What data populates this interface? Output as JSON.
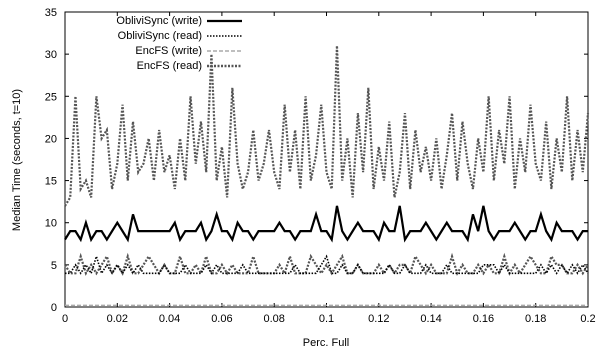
{
  "chart_data": {
    "type": "line",
    "title": "",
    "xlabel": "Perc. Full",
    "ylabel": "Median Time (seconds, t=10)",
    "xlim": [
      0,
      0.2
    ],
    "ylim": [
      0,
      35
    ],
    "x_ticks": [
      0,
      0.02,
      0.04,
      0.06,
      0.08,
      0.1,
      0.12,
      0.14,
      0.16,
      0.18,
      0.2
    ],
    "x_tick_labels": [
      "0",
      "0.02",
      "0.04",
      "0.06",
      "0.08",
      "0.1",
      "0.12",
      "0.14",
      "0.16",
      "0.18",
      "0.2"
    ],
    "y_ticks": [
      0,
      5,
      10,
      15,
      20,
      25,
      30,
      35
    ],
    "y_tick_labels": [
      "0",
      "5",
      "10",
      "15",
      "20",
      "25",
      "30",
      "35"
    ],
    "grid": false,
    "legend_position": "top-left",
    "x": [
      0.0,
      0.002,
      0.004,
      0.006,
      0.008,
      0.01,
      0.012,
      0.014,
      0.016,
      0.018,
      0.02,
      0.022,
      0.024,
      0.026,
      0.028,
      0.03,
      0.032,
      0.034,
      0.036,
      0.038,
      0.04,
      0.042,
      0.044,
      0.046,
      0.048,
      0.05,
      0.052,
      0.054,
      0.056,
      0.058,
      0.06,
      0.062,
      0.064,
      0.066,
      0.068,
      0.07,
      0.072,
      0.074,
      0.076,
      0.078,
      0.08,
      0.082,
      0.084,
      0.086,
      0.088,
      0.09,
      0.092,
      0.094,
      0.096,
      0.098,
      0.1,
      0.102,
      0.104,
      0.106,
      0.108,
      0.11,
      0.112,
      0.114,
      0.116,
      0.118,
      0.12,
      0.122,
      0.124,
      0.126,
      0.128,
      0.13,
      0.132,
      0.134,
      0.136,
      0.138,
      0.14,
      0.142,
      0.144,
      0.146,
      0.148,
      0.15,
      0.152,
      0.154,
      0.156,
      0.158,
      0.16,
      0.162,
      0.164,
      0.166,
      0.168,
      0.17,
      0.172,
      0.174,
      0.176,
      0.178,
      0.18,
      0.182,
      0.184,
      0.186,
      0.188,
      0.19,
      0.192,
      0.194,
      0.196,
      0.198,
      0.2
    ],
    "series": [
      {
        "name": "ObliviSync (write)",
        "style": "solid-thick",
        "color": "#000000",
        "values": [
          8,
          9,
          9,
          8,
          10,
          8,
          9,
          9,
          8,
          9,
          10,
          9,
          8,
          11,
          9,
          9,
          9,
          9,
          9,
          9,
          9,
          10,
          8,
          9,
          9,
          9,
          10,
          8,
          9,
          11,
          9,
          9,
          8,
          10,
          9,
          9,
          8,
          9,
          9,
          9,
          9,
          10,
          9,
          9,
          8,
          9,
          9,
          9,
          11,
          9,
          9,
          8,
          12,
          9,
          8,
          9,
          10,
          9,
          9,
          9,
          8,
          10,
          9,
          9,
          12,
          8,
          9,
          9,
          9,
          10,
          9,
          8,
          9,
          10,
          9,
          9,
          9,
          8,
          11,
          9,
          12,
          9,
          8,
          9,
          9,
          9,
          10,
          9,
          8,
          9,
          9,
          11,
          9,
          8,
          10,
          9,
          9,
          9,
          8,
          9,
          9
        ]
      },
      {
        "name": "ObliviSync (read)",
        "style": "dotted",
        "color": "#000000",
        "values": [
          4,
          4,
          5,
          4,
          5,
          4,
          6,
          4,
          5,
          4,
          5,
          4,
          5,
          4,
          5,
          4,
          4,
          4,
          4,
          5,
          4,
          4,
          4,
          5,
          4,
          4,
          4,
          5,
          4,
          5,
          4,
          4,
          4,
          4,
          5,
          4,
          4,
          4,
          4,
          4,
          4,
          4,
          4,
          4,
          5,
          4,
          4,
          4,
          4,
          5,
          6,
          4,
          4,
          5,
          4,
          4,
          5,
          4,
          4,
          4,
          4,
          4,
          5,
          4,
          4,
          5,
          4,
          4,
          4,
          5,
          4,
          4,
          4,
          5,
          4,
          4,
          4,
          4,
          4,
          4,
          5,
          5,
          5,
          4,
          5,
          4,
          4,
          4,
          4,
          4,
          4,
          5,
          4,
          5,
          4,
          5,
          4,
          5,
          4,
          5,
          4
        ]
      },
      {
        "name": "EncFS (write)",
        "style": "dashed-gray",
        "color": "#aaaaaa",
        "values": [
          0.2,
          0.2,
          0.2,
          0.2,
          0.2,
          0.2,
          0.2,
          0.2,
          0.2,
          0.2,
          0.2,
          0.2,
          0.2,
          0.2,
          0.2,
          0.2,
          0.2,
          0.2,
          0.2,
          0.2,
          0.2,
          0.2,
          0.2,
          0.2,
          0.2,
          0.2,
          0.2,
          0.2,
          0.2,
          0.2,
          0.2,
          0.2,
          0.2,
          0.2,
          0.2,
          0.2,
          0.2,
          0.2,
          0.2,
          0.2,
          0.2,
          0.2,
          0.2,
          0.2,
          0.2,
          0.2,
          0.2,
          0.2,
          0.2,
          0.2,
          0.2,
          0.2,
          0.2,
          0.2,
          0.2,
          0.2,
          0.2,
          0.2,
          0.2,
          0.2,
          0.2,
          0.2,
          0.2,
          0.2,
          0.2,
          0.2,
          0.2,
          0.2,
          0.2,
          0.2,
          0.2,
          0.2,
          0.2,
          0.2,
          0.2,
          0.2,
          0.2,
          0.2,
          0.2,
          0.2,
          0.2,
          0.2,
          0.2,
          0.2,
          0.2,
          0.2,
          0.2,
          0.2,
          0.2,
          0.2,
          0.2,
          0.2,
          0.2,
          0.2,
          0.2,
          0.2,
          0.2,
          0.2,
          0.2,
          0.2,
          0.2
        ]
      },
      {
        "name": "EncFS (read)",
        "style": "dotted-thick",
        "color": "#555555",
        "values": [
          5,
          4,
          4,
          6,
          4,
          5,
          4,
          5,
          6,
          4,
          5,
          4,
          6,
          4,
          4,
          5,
          6,
          5,
          4,
          5,
          4,
          4,
          6,
          4,
          4,
          5,
          4,
          6,
          4,
          4,
          5,
          4,
          5,
          4,
          4,
          4,
          6,
          4,
          4,
          4,
          4,
          5,
          4,
          6,
          4,
          4,
          4,
          6,
          5,
          4,
          5,
          4,
          5,
          6,
          4,
          4,
          5,
          4,
          4,
          4,
          5,
          4,
          5,
          4,
          5,
          5,
          4,
          6,
          5,
          4,
          5,
          4,
          4,
          4,
          6,
          4,
          5,
          4,
          4,
          5,
          4,
          5,
          4,
          4,
          6,
          4,
          5,
          4,
          5,
          6,
          5,
          4,
          4,
          6,
          5,
          5,
          4,
          4,
          5,
          4,
          5
        ]
      },
      {
        "name": "",
        "style": "dotted-gray-upper",
        "color": "#555555",
        "values": [
          12,
          13,
          25,
          14,
          15,
          13,
          25,
          20,
          21,
          14,
          17,
          24,
          15,
          22,
          16,
          17,
          20,
          15,
          21,
          16,
          18,
          14,
          20,
          15,
          25,
          17,
          22,
          16,
          30,
          15,
          19,
          13,
          26,
          17,
          14,
          16,
          21,
          15,
          17,
          21,
          16,
          14,
          24,
          16,
          21,
          14,
          25,
          15,
          18,
          24,
          16,
          14,
          31,
          15,
          20,
          13,
          23,
          16,
          26,
          14,
          19,
          15,
          22,
          13,
          16,
          23,
          14,
          21,
          16,
          19,
          15,
          20,
          14,
          18,
          23,
          15,
          22,
          17,
          14,
          20,
          16,
          25,
          15,
          21,
          17,
          25,
          14,
          20,
          16,
          24,
          17,
          15,
          22,
          14,
          20,
          16,
          25,
          15,
          21,
          16,
          23
        ]
      }
    ]
  }
}
